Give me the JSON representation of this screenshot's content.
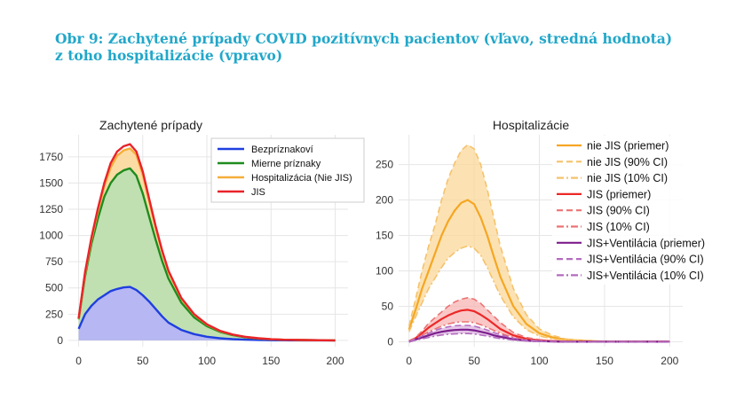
{
  "figure": {
    "title_line1": "Obr 9: Zachytené prípady COVID pozitívnych pacientov (vľavo, stredná hodnota)",
    "title_line2": "z toho hospitalizácie (vpravo)"
  },
  "chart_data": [
    {
      "type": "area",
      "title": "Zachytené prípady",
      "xlabel": "",
      "ylabel": "",
      "xlim": [
        -8,
        210
      ],
      "ylim": [
        -60,
        1960
      ],
      "xticks": [
        0,
        50,
        100,
        150,
        200
      ],
      "yticks": [
        0,
        250,
        500,
        750,
        1000,
        1250,
        1500,
        1750
      ],
      "legend_position": "top-right",
      "x": [
        0,
        5,
        10,
        15,
        20,
        25,
        30,
        35,
        40,
        45,
        50,
        55,
        60,
        65,
        70,
        80,
        90,
        100,
        110,
        120,
        130,
        140,
        150,
        160,
        175,
        200
      ],
      "series": [
        {
          "name": "Bezpríznakoví",
          "color": "#1f3fe0",
          "fill": "#b5b3fb",
          "values": [
            110,
            250,
            330,
            390,
            430,
            470,
            490,
            505,
            510,
            480,
            430,
            370,
            300,
            230,
            170,
            100,
            60,
            35,
            20,
            12,
            7,
            4,
            2,
            1,
            0,
            0
          ]
        },
        {
          "name": "Mierne príznaky",
          "color": "#1e8c1e",
          "fill": "#b9e0b3",
          "values": [
            200,
            610,
            920,
            1160,
            1370,
            1500,
            1580,
            1620,
            1640,
            1570,
            1400,
            1180,
            960,
            760,
            590,
            360,
            220,
            135,
            82,
            50,
            30,
            18,
            10,
            6,
            3,
            0
          ]
        },
        {
          "name": "Hospitalizácia (Nie JIS)",
          "color": "#f5ae3a",
          "fill": "#fbd89a",
          "values": [
            205,
            635,
            960,
            1230,
            1470,
            1650,
            1760,
            1810,
            1830,
            1770,
            1580,
            1330,
            1075,
            850,
            655,
            400,
            245,
            150,
            90,
            55,
            33,
            20,
            11,
            6,
            3,
            0
          ]
        },
        {
          "name": "JIS",
          "color": "#e8232a",
          "fill": "none",
          "values": [
            210,
            650,
            980,
            1255,
            1500,
            1690,
            1800,
            1850,
            1870,
            1800,
            1610,
            1350,
            1090,
            860,
            665,
            405,
            250,
            153,
            92,
            56,
            34,
            20,
            11,
            6,
            3,
            0
          ]
        }
      ]
    },
    {
      "type": "line",
      "title": "Hospitalizácie",
      "xlabel": "",
      "ylabel": "",
      "xlim": [
        -8,
        210
      ],
      "ylim": [
        -7,
        292
      ],
      "xticks": [
        0,
        50,
        100,
        150,
        200
      ],
      "yticks": [
        0,
        50,
        100,
        150,
        200,
        250
      ],
      "ytick_labels": [
        "0",
        "50",
        "100",
        "150",
        "200",
        "250"
      ],
      "legend_position": "top-right",
      "x": [
        0,
        5,
        10,
        15,
        20,
        25,
        30,
        35,
        40,
        45,
        50,
        55,
        60,
        65,
        70,
        80,
        90,
        100,
        110,
        120,
        130,
        140,
        150,
        160,
        175,
        200
      ],
      "series": [
        {
          "name": "nie JIS (priemer)",
          "color": "#f5a623",
          "dash": "solid",
          "values": [
            17,
            45,
            75,
            100,
            125,
            150,
            170,
            185,
            196,
            200,
            194,
            175,
            150,
            120,
            92,
            50,
            25,
            12,
            6,
            3,
            2,
            1,
            0,
            0,
            0,
            0
          ]
        },
        {
          "name": "nie JIS (90% CI)",
          "color": "#f5c26b",
          "dash": "dashed",
          "values": [
            22,
            60,
            100,
            135,
            165,
            200,
            230,
            252,
            270,
            278,
            272,
            250,
            215,
            175,
            135,
            75,
            38,
            18,
            9,
            4,
            2,
            1,
            0,
            0,
            0,
            0
          ]
        },
        {
          "name": "nie JIS (10% CI)",
          "color": "#f5c26b",
          "dash": "dashdot",
          "values": [
            14,
            35,
            55,
            75,
            90,
            105,
            118,
            126,
            132,
            135,
            132,
            122,
            105,
            85,
            65,
            35,
            17,
            8,
            4,
            2,
            1,
            0,
            0,
            0,
            0,
            0
          ]
        },
        {
          "name": "JIS (priemer)",
          "color": "#ec2828",
          "dash": "solid",
          "values": [
            1,
            5,
            12,
            20,
            26,
            32,
            37,
            41,
            44,
            45,
            43,
            38,
            32,
            25,
            18,
            9,
            4,
            2,
            1,
            0,
            0,
            0,
            0,
            0,
            0,
            0
          ]
        },
        {
          "name": "JIS (90% CI)",
          "color": "#ec7373",
          "dash": "dashed",
          "values": [
            1,
            6,
            15,
            26,
            34,
            42,
            50,
            56,
            60,
            62,
            60,
            54,
            45,
            36,
            27,
            13,
            6,
            3,
            1,
            0,
            0,
            0,
            0,
            0,
            0,
            0
          ]
        },
        {
          "name": "JIS (10% CI)",
          "color": "#ec7373",
          "dash": "dashdot",
          "values": [
            0,
            4,
            9,
            14,
            18,
            22,
            25,
            27,
            28,
            28,
            27,
            24,
            20,
            16,
            12,
            6,
            3,
            1,
            0,
            0,
            0,
            0,
            0,
            0,
            0,
            0
          ]
        },
        {
          "name": "JIS+Ventilácia (priemer)",
          "color": "#7d1e8c",
          "dash": "solid",
          "values": [
            0,
            3,
            6,
            9,
            12,
            14,
            15.5,
            16.5,
            17,
            17,
            16,
            14,
            12,
            9,
            7,
            3.5,
            1.5,
            0.7,
            0.3,
            0,
            0,
            0,
            0,
            0,
            0,
            0
          ]
        },
        {
          "name": "JIS+Ventilácia (90% CI)",
          "color": "#b46bbf",
          "dash": "dashed",
          "values": [
            0,
            4,
            8,
            12,
            16,
            19,
            21,
            22.5,
            23,
            23,
            22,
            19.5,
            16.5,
            13,
            10,
            5,
            2,
            1,
            0.4,
            0,
            0,
            0,
            0,
            0,
            0,
            0
          ]
        },
        {
          "name": "JIS+Ventilácia (10% CI)",
          "color": "#b46bbf",
          "dash": "dashdot",
          "values": [
            0,
            2,
            4,
            6,
            8,
            9.5,
            10.5,
            11,
            11.5,
            11.5,
            11,
            9.5,
            8,
            6,
            4.5,
            2.3,
            1,
            0.4,
            0.1,
            0,
            0,
            0,
            0,
            0,
            0,
            0
          ]
        }
      ]
    }
  ]
}
